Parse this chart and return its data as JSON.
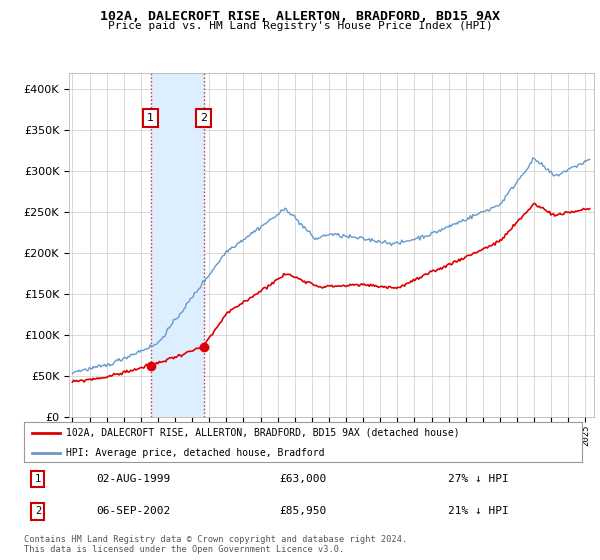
{
  "title": "102A, DALECROFT RISE, ALLERTON, BRADFORD, BD15 9AX",
  "subtitle": "Price paid vs. HM Land Registry's House Price Index (HPI)",
  "legend_label_red": "102A, DALECROFT RISE, ALLERTON, BRADFORD, BD15 9AX (detached house)",
  "legend_label_blue": "HPI: Average price, detached house, Bradford",
  "footer": "Contains HM Land Registry data © Crown copyright and database right 2024.\nThis data is licensed under the Open Government Licence v3.0.",
  "sale1_date": "02-AUG-1999",
  "sale1_price": "£63,000",
  "sale1_hpi": "27% ↓ HPI",
  "sale2_date": "06-SEP-2002",
  "sale2_price": "£85,950",
  "sale2_hpi": "21% ↓ HPI",
  "sale1_year": 1999.58,
  "sale1_value": 63000,
  "sale2_year": 2002.67,
  "sale2_value": 85950,
  "ylim": [
    0,
    420000
  ],
  "xlim": [
    1994.8,
    2025.5
  ],
  "red_color": "#dd0000",
  "blue_color": "#6699cc",
  "shade_color": "#ddeeff",
  "background_color": "#ffffff",
  "grid_color": "#cccccc"
}
